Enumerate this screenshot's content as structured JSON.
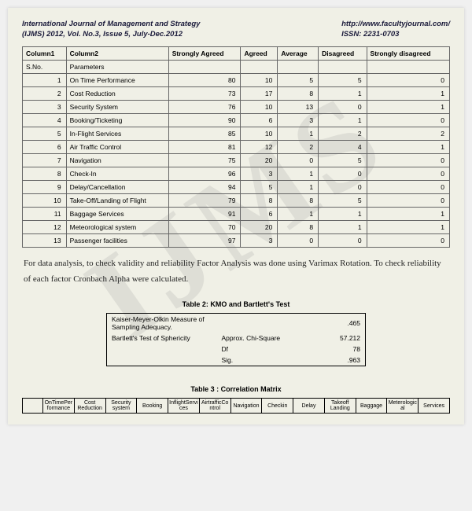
{
  "header": {
    "journal_title": "International Journal of Management and Strategy",
    "issue_line": "(IJMS) 2012, Vol. No.3, Issue 5, July-Dec.2012",
    "url": "http://www.facultyjournal.com/",
    "issn": "ISSN: 2231-0703"
  },
  "main_table": {
    "columns": [
      "Column1",
      "Column2",
      "Strongly Agreed",
      "Agreed",
      "Average",
      "Disagreed",
      "Strongly disagreed"
    ],
    "subhead": [
      "S.No.",
      "Parameters"
    ],
    "rows": [
      {
        "i": "1",
        "p": "On Time Performance",
        "sa": "80",
        "a": "10",
        "av": "5",
        "d": "5",
        "sd": "0"
      },
      {
        "i": "2",
        "p": "Cost Reduction",
        "sa": "73",
        "a": "17",
        "av": "8",
        "d": "1",
        "sd": "1"
      },
      {
        "i": "3",
        "p": "Security System",
        "sa": "76",
        "a": "10",
        "av": "13",
        "d": "0",
        "sd": "1"
      },
      {
        "i": "4",
        "p": "Booking/Ticketing",
        "sa": "90",
        "a": "6",
        "av": "3",
        "d": "1",
        "sd": "0"
      },
      {
        "i": "5",
        "p": "In-Flight Services",
        "sa": "85",
        "a": "10",
        "av": "1",
        "d": "2",
        "sd": "2"
      },
      {
        "i": "6",
        "p": "Air Traffic Control",
        "sa": "81",
        "a": "12",
        "av": "2",
        "d": "4",
        "sd": "1"
      },
      {
        "i": "7",
        "p": "Navigation",
        "sa": "75",
        "a": "20",
        "av": "0",
        "d": "5",
        "sd": "0"
      },
      {
        "i": "8",
        "p": "Check-In",
        "sa": "96",
        "a": "3",
        "av": "1",
        "d": "0",
        "sd": "0"
      },
      {
        "i": "9",
        "p": "Delay/Cancellation",
        "sa": "94",
        "a": "5",
        "av": "1",
        "d": "0",
        "sd": "0"
      },
      {
        "i": "10",
        "p": "Take-Off/Landing of Flight",
        "sa": "79",
        "a": "8",
        "av": "8",
        "d": "5",
        "sd": "0"
      },
      {
        "i": "11",
        "p": "Baggage Services",
        "sa": "91",
        "a": "6",
        "av": "1",
        "d": "1",
        "sd": "1"
      },
      {
        "i": "12",
        "p": "Meteorological system",
        "sa": "70",
        "a": "20",
        "av": "8",
        "d": "1",
        "sd": "1"
      },
      {
        "i": "13",
        "p": "Passenger facilities",
        "sa": "97",
        "a": "3",
        "av": "0",
        "d": "0",
        "sd": "0"
      }
    ]
  },
  "body_text": "For data analysis, to check validity and reliability Factor Analysis was done using Varimax Rotation. To check reliability of each factor Cronbach Alpha were calculated.",
  "kmo": {
    "title": "Table 2: KMO and Bartlett's Test",
    "rows": [
      {
        "l1": "Kaiser-Meyer-Olkin Measure of Sampling Adequacy.",
        "l2": "",
        "v": ".465"
      },
      {
        "l1": "Bartlett's Test of Sphericity",
        "l2": "Approx. Chi-Square",
        "v": "57.212"
      },
      {
        "l1": "",
        "l2": "Df",
        "v": "78"
      },
      {
        "l1": "",
        "l2": "Sig.",
        "v": ".963"
      }
    ]
  },
  "corr": {
    "title": "Table 3 : Correlation Matrix",
    "headers": [
      "",
      "OnTimePerformance",
      "Cost Reduction",
      "Security system",
      "Booking",
      "InflightServices",
      "AirtrafficControl",
      "Navigation",
      "Checkin",
      "Delay",
      "Takeoff Landing",
      "Baggage",
      "Meterological",
      "Services"
    ]
  },
  "watermark": "IJMS"
}
